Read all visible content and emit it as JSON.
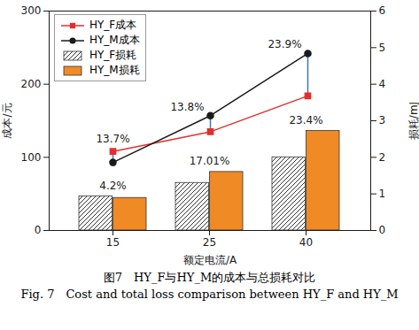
{
  "chart_data": {
    "type": "bar",
    "categories": [
      15,
      25,
      40
    ],
    "x_label": "额定电流/A",
    "y_label": "成本/元",
    "y2_label": "损耗/mJ",
    "ylim": [
      0,
      300
    ],
    "yticks": [
      0,
      100,
      200,
      300
    ],
    "y2lim": [
      0,
      6
    ],
    "y2ticks": [
      0,
      1,
      2,
      3,
      4,
      5,
      6
    ],
    "legend": "upper left",
    "series": [
      {
        "name": "HY_F成本",
        "type": "line",
        "axis": "y",
        "color": "#e0302e",
        "marker": "square",
        "values": [
          108,
          135,
          184
        ]
      },
      {
        "name": "HY_M成本",
        "type": "line",
        "axis": "y",
        "color": "#1a1a1a",
        "marker": "circle",
        "values": [
          93,
          157,
          242
        ]
      },
      {
        "name": "HY_F损耗",
        "type": "bar",
        "axis": "y2",
        "color": "#333333",
        "line_style": "hatched",
        "values": [
          0.93,
          1.3,
          2.0
        ]
      },
      {
        "name": "HY_M损耗",
        "type": "bar",
        "axis": "y2",
        "color": "#f08a24",
        "values": [
          0.89,
          1.6,
          2.72
        ]
      }
    ],
    "annotations": [
      {
        "text": "13.7%",
        "x": 15,
        "axis": "y"
      },
      {
        "text": "13.8%",
        "x": 25,
        "axis": "y"
      },
      {
        "text": "23.9%",
        "x": 40,
        "axis": "y"
      },
      {
        "text": "4.2%",
        "x": 15,
        "axis": "y2"
      },
      {
        "text": "17.01%",
        "x": 25,
        "axis": "y2"
      },
      {
        "text": "23.4%",
        "x": 40,
        "axis": "y2"
      }
    ],
    "caption": [
      "图7　HY_F与HY_M的成本与总损耗对比",
      "Fig. 7　Cost and total loss comparison between HY_F and HY_M"
    ]
  }
}
